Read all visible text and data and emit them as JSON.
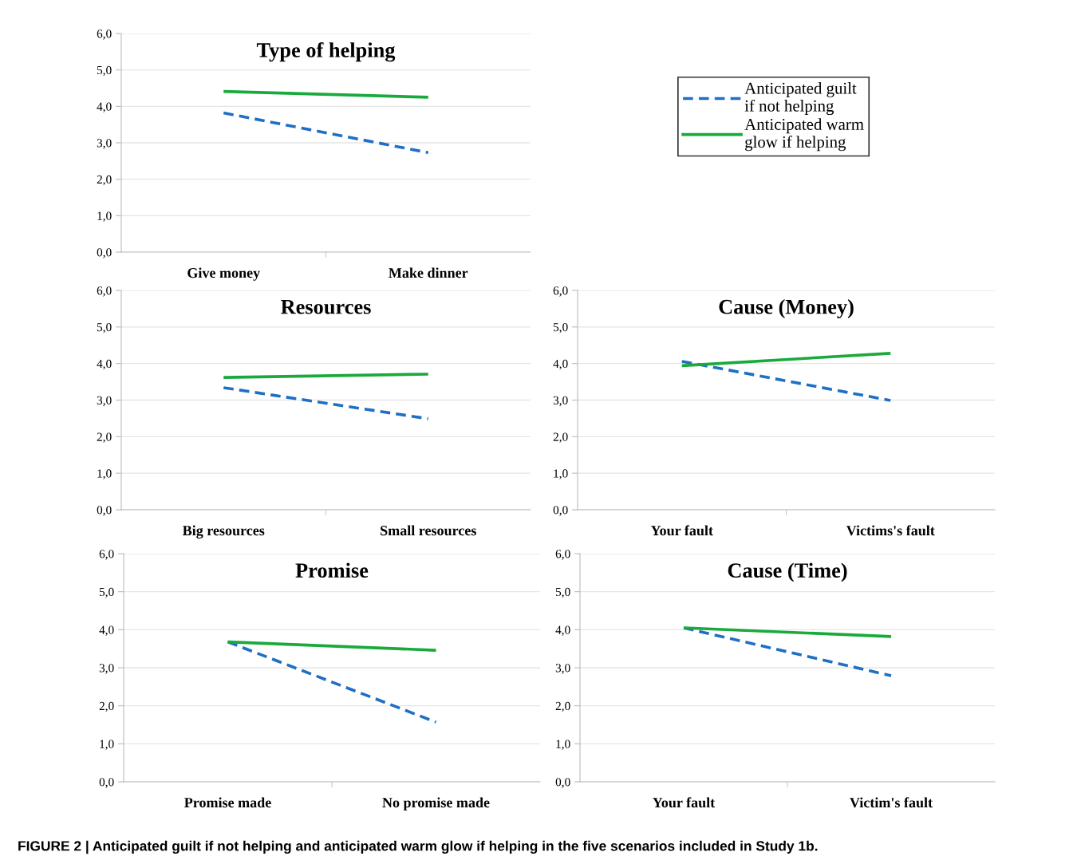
{
  "chart_data": [
    {
      "type": "line",
      "title": "Type of helping",
      "categories": [
        "Give money",
        "Make dinner"
      ],
      "ylim": [
        0,
        6
      ],
      "yticks": [
        {
          "value": 0,
          "label": "0,0"
        },
        {
          "value": 1,
          "label": "1,0"
        },
        {
          "value": 2,
          "label": "2,0"
        },
        {
          "value": 3,
          "label": "3,0"
        },
        {
          "value": 4,
          "label": "4,0"
        },
        {
          "value": 5,
          "label": "5,0"
        },
        {
          "value": 6,
          "label": "6,0"
        }
      ],
      "grid": "y",
      "legend": "right",
      "marker": "none",
      "series": [
        {
          "name": "Anticipated guilt if not helping",
          "color": "#1f6fc5",
          "line_style": "dashed",
          "values": [
            3.82,
            2.73
          ]
        },
        {
          "name": "Anticipated warm glow if helping",
          "color": "#1aaa3c",
          "line_style": "solid",
          "values": [
            4.41,
            4.25
          ]
        }
      ]
    },
    {
      "type": "line",
      "title": "Resources",
      "categories": [
        "Big resources",
        "Small resources"
      ],
      "ylim": [
        0,
        6
      ],
      "yticks": [
        {
          "value": 0,
          "label": "0,0"
        },
        {
          "value": 1,
          "label": "1,0"
        },
        {
          "value": 2,
          "label": "2,0"
        },
        {
          "value": 3,
          "label": "3,0"
        },
        {
          "value": 4,
          "label": "4,0"
        },
        {
          "value": 5,
          "label": "5,0"
        },
        {
          "value": 6,
          "label": "6,0"
        }
      ],
      "grid": "y",
      "marker": "none",
      "series": [
        {
          "color": "#1f6fc5",
          "line_style": "dashed",
          "values": [
            3.34,
            2.49
          ]
        },
        {
          "color": "#1aaa3c",
          "line_style": "solid",
          "values": [
            3.62,
            3.71
          ]
        }
      ]
    },
    {
      "type": "line",
      "title": "Cause (Money)",
      "categories": [
        "Your fault",
        "Victims's fault"
      ],
      "ylim": [
        0,
        6
      ],
      "yticks": [
        {
          "value": 0,
          "label": "0,0"
        },
        {
          "value": 1,
          "label": "1,0"
        },
        {
          "value": 2,
          "label": "2,0"
        },
        {
          "value": 3,
          "label": "3,0"
        },
        {
          "value": 4,
          "label": "4,0"
        },
        {
          "value": 5,
          "label": "5,0"
        },
        {
          "value": 6,
          "label": "6,0"
        }
      ],
      "grid": "y",
      "marker": "none",
      "series": [
        {
          "color": "#1f6fc5",
          "line_style": "dashed",
          "values": [
            4.06,
            2.99
          ]
        },
        {
          "color": "#1aaa3c",
          "line_style": "solid",
          "values": [
            3.94,
            4.28
          ]
        }
      ]
    },
    {
      "type": "line",
      "title": "Promise",
      "categories": [
        "Promise made",
        "No promise made"
      ],
      "ylim": [
        0,
        6
      ],
      "yticks": [
        {
          "value": 0,
          "label": "0,0"
        },
        {
          "value": 1,
          "label": "1,0"
        },
        {
          "value": 2,
          "label": "2,0"
        },
        {
          "value": 3,
          "label": "3,0"
        },
        {
          "value": 4,
          "label": "4,0"
        },
        {
          "value": 5,
          "label": "5,0"
        },
        {
          "value": 6,
          "label": "6,0"
        }
      ],
      "grid": "y",
      "marker": "none",
      "series": [
        {
          "color": "#1f6fc5",
          "line_style": "dashed",
          "values": [
            3.68,
            1.57
          ]
        },
        {
          "color": "#1aaa3c",
          "line_style": "solid",
          "values": [
            3.68,
            3.46
          ]
        }
      ]
    },
    {
      "type": "line",
      "title": "Cause (Time)",
      "categories": [
        "Your fault",
        "Victim's fault"
      ],
      "ylim": [
        0,
        6
      ],
      "yticks": [
        {
          "value": 0,
          "label": "0,0"
        },
        {
          "value": 1,
          "label": "1,0"
        },
        {
          "value": 2,
          "label": "2,0"
        },
        {
          "value": 3,
          "label": "3,0"
        },
        {
          "value": 4,
          "label": "4,0"
        },
        {
          "value": 5,
          "label": "5,0"
        },
        {
          "value": 6,
          "label": "6,0"
        }
      ],
      "grid": "y",
      "marker": "none",
      "annotations": [
        "FIGURE 2 | Anticipated guilt if not helping and anticipated warm glow if helping in the five scenarios included in Study 1b."
      ],
      "series": [
        {
          "color": "#1f6fc5",
          "line_style": "dashed",
          "values": [
            4.05,
            2.79
          ]
        },
        {
          "color": "#1aaa3c",
          "line_style": "solid",
          "values": [
            4.05,
            3.82
          ]
        }
      ]
    }
  ]
}
